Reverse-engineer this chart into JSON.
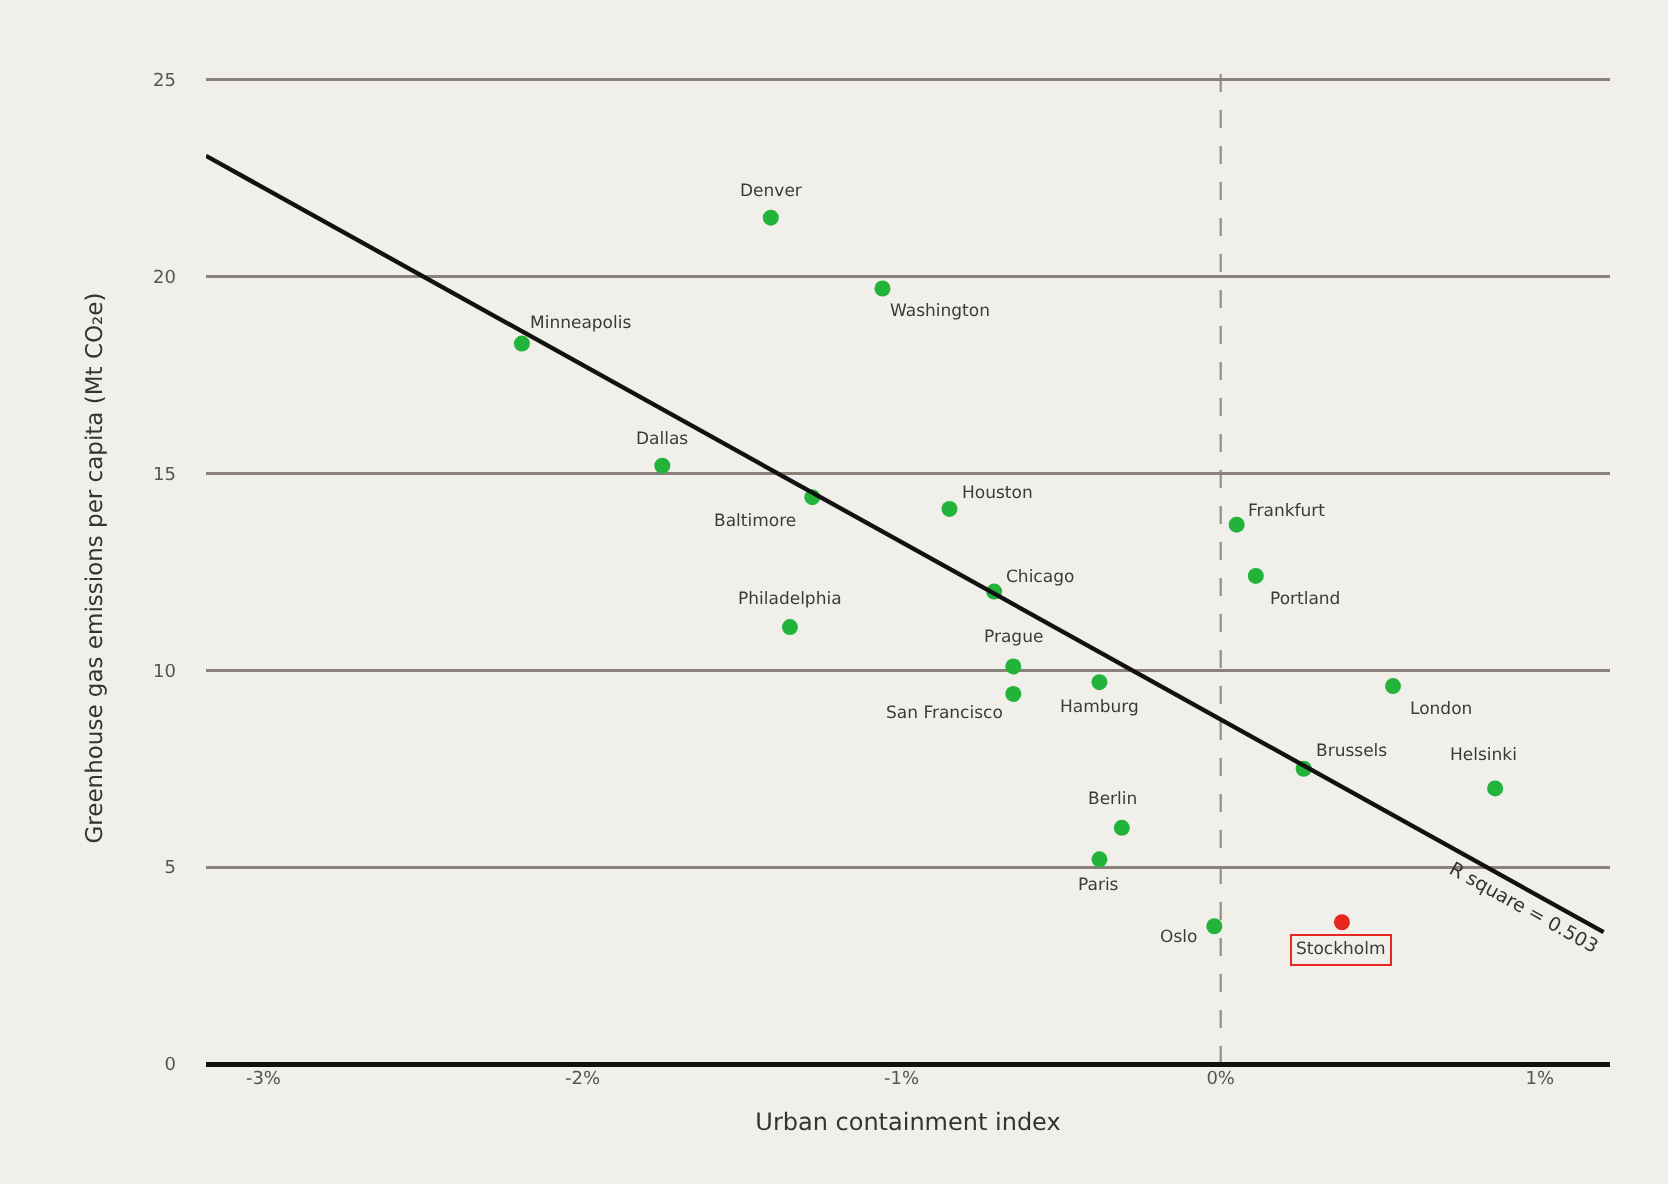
{
  "chart_data": {
    "type": "scatter",
    "xlabel": "Urban containment index",
    "ylabel": "Greenhouse gas emissions per capita (Mt CO₂e)",
    "xlim": [
      -3.18,
      1.22
    ],
    "ylim": [
      0,
      25.2
    ],
    "xticks": [
      {
        "value": -3,
        "label": "-3%"
      },
      {
        "value": -2,
        "label": "-2%"
      },
      {
        "value": -1,
        "label": "-1%"
      },
      {
        "value": 0,
        "label": "0%"
      },
      {
        "value": 1,
        "label": "1%"
      }
    ],
    "yticks": [
      0,
      5,
      10,
      15,
      20,
      25
    ],
    "grid": "y",
    "marker": "circle",
    "ref_lines": [
      {
        "axis": "x",
        "value": 0,
        "color": "#9a9590",
        "line_style": "dashed"
      }
    ],
    "annotations": [
      {
        "text": "R square = 0.503",
        "x": 0.95,
        "y": 4.4
      }
    ],
    "series": [
      {
        "name": "Denver",
        "color": "#22b33a",
        "x": [
          -1.41
        ],
        "values": [
          21.5
        ]
      },
      {
        "name": "Washington",
        "color": "#22b33a",
        "x": [
          -1.06
        ],
        "values": [
          19.7
        ]
      },
      {
        "name": "Minneapolis",
        "color": "#22b33a",
        "x": [
          -2.19
        ],
        "values": [
          18.3
        ]
      },
      {
        "name": "Dallas",
        "color": "#22b33a",
        "x": [
          -1.75
        ],
        "values": [
          15.2
        ]
      },
      {
        "name": "Baltimore",
        "color": "#22b33a",
        "x": [
          -1.28
        ],
        "values": [
          14.4
        ]
      },
      {
        "name": "Houston",
        "color": "#22b33a",
        "x": [
          -0.85
        ],
        "values": [
          14.1
        ]
      },
      {
        "name": "Chicago",
        "color": "#22b33a",
        "x": [
          -0.71
        ],
        "values": [
          12.0
        ]
      },
      {
        "name": "Philadelphia",
        "color": "#22b33a",
        "x": [
          -1.35
        ],
        "values": [
          11.1
        ]
      },
      {
        "name": "Prague",
        "color": "#22b33a",
        "x": [
          -0.65
        ],
        "values": [
          10.1
        ]
      },
      {
        "name": "San Francisco",
        "color": "#22b33a",
        "x": [
          -0.65
        ],
        "values": [
          9.4
        ]
      },
      {
        "name": "Hamburg",
        "color": "#22b33a",
        "x": [
          -0.38
        ],
        "values": [
          9.7
        ]
      },
      {
        "name": "Frankfurt",
        "color": "#22b33a",
        "x": [
          0.05
        ],
        "values": [
          13.7
        ]
      },
      {
        "name": "Portland",
        "color": "#22b33a",
        "x": [
          0.11
        ],
        "values": [
          12.4
        ]
      },
      {
        "name": "London",
        "color": "#22b33a",
        "x": [
          0.54
        ],
        "values": [
          9.6
        ]
      },
      {
        "name": "Brussels",
        "color": "#22b33a",
        "x": [
          0.26
        ],
        "values": [
          7.5
        ]
      },
      {
        "name": "Helsinki",
        "color": "#22b33a",
        "x": [
          0.86
        ],
        "values": [
          7.0
        ]
      },
      {
        "name": "Berlin",
        "color": "#22b33a",
        "x": [
          -0.31
        ],
        "values": [
          6.0
        ]
      },
      {
        "name": "Paris",
        "color": "#22b33a",
        "x": [
          -0.38
        ],
        "values": [
          5.2
        ]
      },
      {
        "name": "Oslo",
        "color": "#22b33a",
        "x": [
          -0.02
        ],
        "values": [
          3.5
        ]
      },
      {
        "name": "Stockholm",
        "color": "#e8261f",
        "x": [
          0.38
        ],
        "values": [
          3.6
        ]
      },
      {
        "type": "line",
        "marker": "none",
        "color": "#111111",
        "x": [
          -3.18,
          1.2
        ],
        "values": [
          23.07,
          3.35
        ]
      }
    ]
  }
}
